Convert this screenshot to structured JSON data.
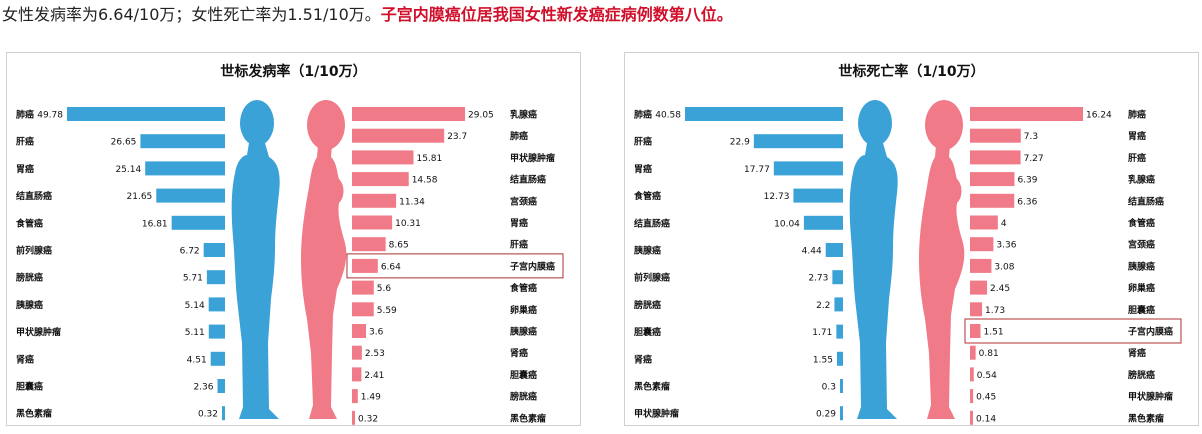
{
  "headline": {
    "part1": "女性发病率为6.64/10万；女性死亡率为1.51/10万。",
    "part2": "子宫内膜癌位居我国女性新发癌症病例数第八位。"
  },
  "colors": {
    "male": "#3ba2d8",
    "female": "#f07a88",
    "highlight_border": "#b03030"
  },
  "chart_data": [
    {
      "type": "bar",
      "title": "世标发病率（1/10万）",
      "highlight": "子宫内膜癌",
      "series": [
        {
          "categories": [
            "肺癌",
            "肝癌",
            "胃癌",
            "结直肠癌",
            "食管癌",
            "前列腺癌",
            "膀胱癌",
            "胰腺癌",
            "甲状腺肿瘤",
            "肾癌",
            "胆囊癌",
            "黑色素瘤"
          ],
          "values": [
            49.78,
            26.65,
            25.14,
            21.65,
            16.81,
            6.72,
            5.71,
            5.14,
            5.11,
            4.51,
            2.36,
            0.32
          ]
        },
        {
          "categories": [
            "乳腺癌",
            "肺癌",
            "甲状腺肿瘤",
            "结直肠癌",
            "宫颈癌",
            "胃癌",
            "肝癌",
            "子宫内膜癌",
            "食管癌",
            "卵巢癌",
            "胰腺癌",
            "肾癌",
            "胆囊癌",
            "膀胱癌",
            "黑色素瘤"
          ],
          "values": [
            29.05,
            23.7,
            15.81,
            14.58,
            11.34,
            10.31,
            8.65,
            6.64,
            5.6,
            5.59,
            3.6,
            2.53,
            2.41,
            1.49,
            0.32
          ]
        }
      ]
    },
    {
      "type": "bar",
      "title": "世标死亡率（1/10万）",
      "highlight": "子宫内膜癌",
      "series": [
        {
          "categories": [
            "肺癌",
            "肝癌",
            "胃癌",
            "食管癌",
            "结直肠癌",
            "胰腺癌",
            "前列腺癌",
            "膀胱癌",
            "胆囊癌",
            "肾癌",
            "黑色素瘤",
            "甲状腺肿瘤"
          ],
          "values": [
            40.58,
            22.9,
            17.77,
            12.73,
            10.04,
            4.44,
            2.73,
            2.2,
            1.71,
            1.55,
            0.3,
            0.29
          ]
        },
        {
          "categories": [
            "肺癌",
            "胃癌",
            "肝癌",
            "乳腺癌",
            "结直肠癌",
            "食管癌",
            "宫颈癌",
            "胰腺癌",
            "卵巢癌",
            "胆囊癌",
            "子宫内膜癌",
            "肾癌",
            "膀胱癌",
            "甲状腺肿瘤",
            "黑色素瘤"
          ],
          "values": [
            16.24,
            7.3,
            7.27,
            6.39,
            6.36,
            4,
            3.36,
            3.08,
            2.45,
            1.73,
            1.51,
            0.81,
            0.54,
            0.45,
            0.14
          ]
        }
      ]
    }
  ]
}
